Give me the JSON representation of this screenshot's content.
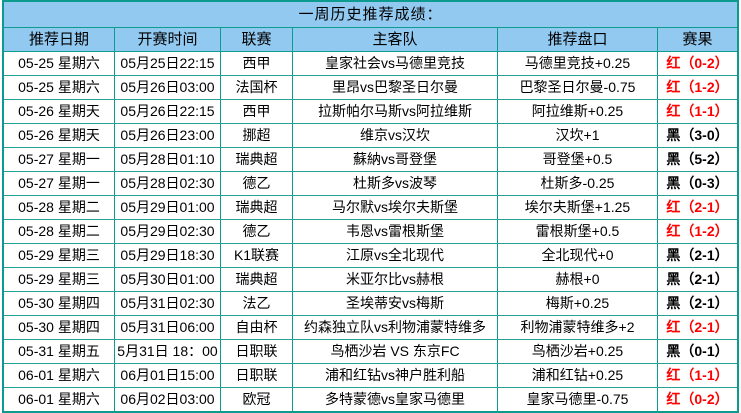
{
  "title": "一周历史推荐成绩：",
  "colors": {
    "border_teal": "#0d9b8f",
    "header_blue": "#92c9f1",
    "result_red": "#ff0000",
    "result_black": "#000000",
    "row_bg": "#ffffff"
  },
  "table": {
    "headers": [
      "推荐日期",
      "开赛时间",
      "联赛",
      "主客队",
      "推荐盘口",
      "赛果"
    ],
    "rows": [
      {
        "date": "05-25 星期六",
        "time": "05月25日22:15",
        "league": "西甲",
        "teams": "皇家社会vs马德里竞技",
        "handicap": "马德里竞技+0.25",
        "result": "红（0-2）",
        "result_type": "red"
      },
      {
        "date": "05-25 星期六",
        "time": "05月26日03:00",
        "league": "法国杯",
        "teams": "里昂vs巴黎圣日尔曼",
        "handicap": "巴黎圣日尔曼-0.75",
        "result": "红（1-2）",
        "result_type": "red"
      },
      {
        "date": "05-26 星期天",
        "time": "05月26日22:15",
        "league": "西甲",
        "teams": "拉斯帕尔马斯vs阿拉维斯",
        "handicap": "阿拉维斯+0.25",
        "result": "红（1-1）",
        "result_type": "red"
      },
      {
        "date": "05-26 星期天",
        "time": "05月26日23:00",
        "league": "挪超",
        "teams": "维京vs汉坎",
        "handicap": "汉坎+1",
        "result": "黑（3-0）",
        "result_type": "black"
      },
      {
        "date": "05-27 星期一",
        "time": "05月28日01:10",
        "league": "瑞典超",
        "teams": "蘇納vs哥登堡",
        "handicap": "哥登堡+0.5",
        "result": "黑（5-2）",
        "result_type": "black"
      },
      {
        "date": "05-27 星期一",
        "time": "05月28日02:30",
        "league": "德乙",
        "teams": "杜斯多vs波琴",
        "handicap": "杜斯多-0.25",
        "result": "黑（0-3）",
        "result_type": "black"
      },
      {
        "date": "05-28 星期二",
        "time": "05月29日01:00",
        "league": "瑞典超",
        "teams": "马尔默vs埃尔夫斯堡",
        "handicap": "埃尔夫斯堡+1.25",
        "result": "红（2-1）",
        "result_type": "red"
      },
      {
        "date": "05-28 星期二",
        "time": "05月29日02:30",
        "league": "德乙",
        "teams": "韦恩vs雷根斯堡",
        "handicap": "雷根斯堡+0.5",
        "result": "红（1-2）",
        "result_type": "red"
      },
      {
        "date": "05-29 星期三",
        "time": "05月29日18:30",
        "league": "K1联赛",
        "teams": "江原vs全北现代",
        "handicap": "全北现代+0",
        "result": "黑（2-1）",
        "result_type": "black"
      },
      {
        "date": "05-29 星期三",
        "time": "05月30日01:00",
        "league": "瑞典超",
        "teams": "米亚尔比vs赫根",
        "handicap": "赫根+0",
        "result": "黑（2-1）",
        "result_type": "black"
      },
      {
        "date": "05-30 星期四",
        "time": "05月31日02:30",
        "league": "法乙",
        "teams": "圣埃蒂安vs梅斯",
        "handicap": "梅斯+0.25",
        "result": "黑（2-1）",
        "result_type": "black"
      },
      {
        "date": "05-30 星期四",
        "time": "05月31日06:00",
        "league": "自由杯",
        "teams": "约森独立队vs利物浦蒙特维多",
        "handicap": "利物浦蒙特维多+2",
        "result": "红（2-1）",
        "result_type": "red"
      },
      {
        "date": "05-31 星期五",
        "time": "5月31日 18：00",
        "league": "日职联",
        "teams": "鸟栖沙岩 VS 东京FC",
        "handicap": "鸟栖沙岩+0.25",
        "result": "黑（0-1）",
        "result_type": "black"
      },
      {
        "date": "06-01 星期六",
        "time": "06月01日15:00",
        "league": "日职联",
        "teams": "浦和红钻vs神户胜利船",
        "handicap": "浦和红钻+0.25",
        "result": "红（1-1）",
        "result_type": "red"
      },
      {
        "date": "06-01 星期六",
        "time": "06月02日03:00",
        "league": "欧冠",
        "teams": "多特蒙德vs皇家马德里",
        "handicap": "皇家马德里-0.75",
        "result": "红（0-2）",
        "result_type": "red"
      }
    ]
  }
}
